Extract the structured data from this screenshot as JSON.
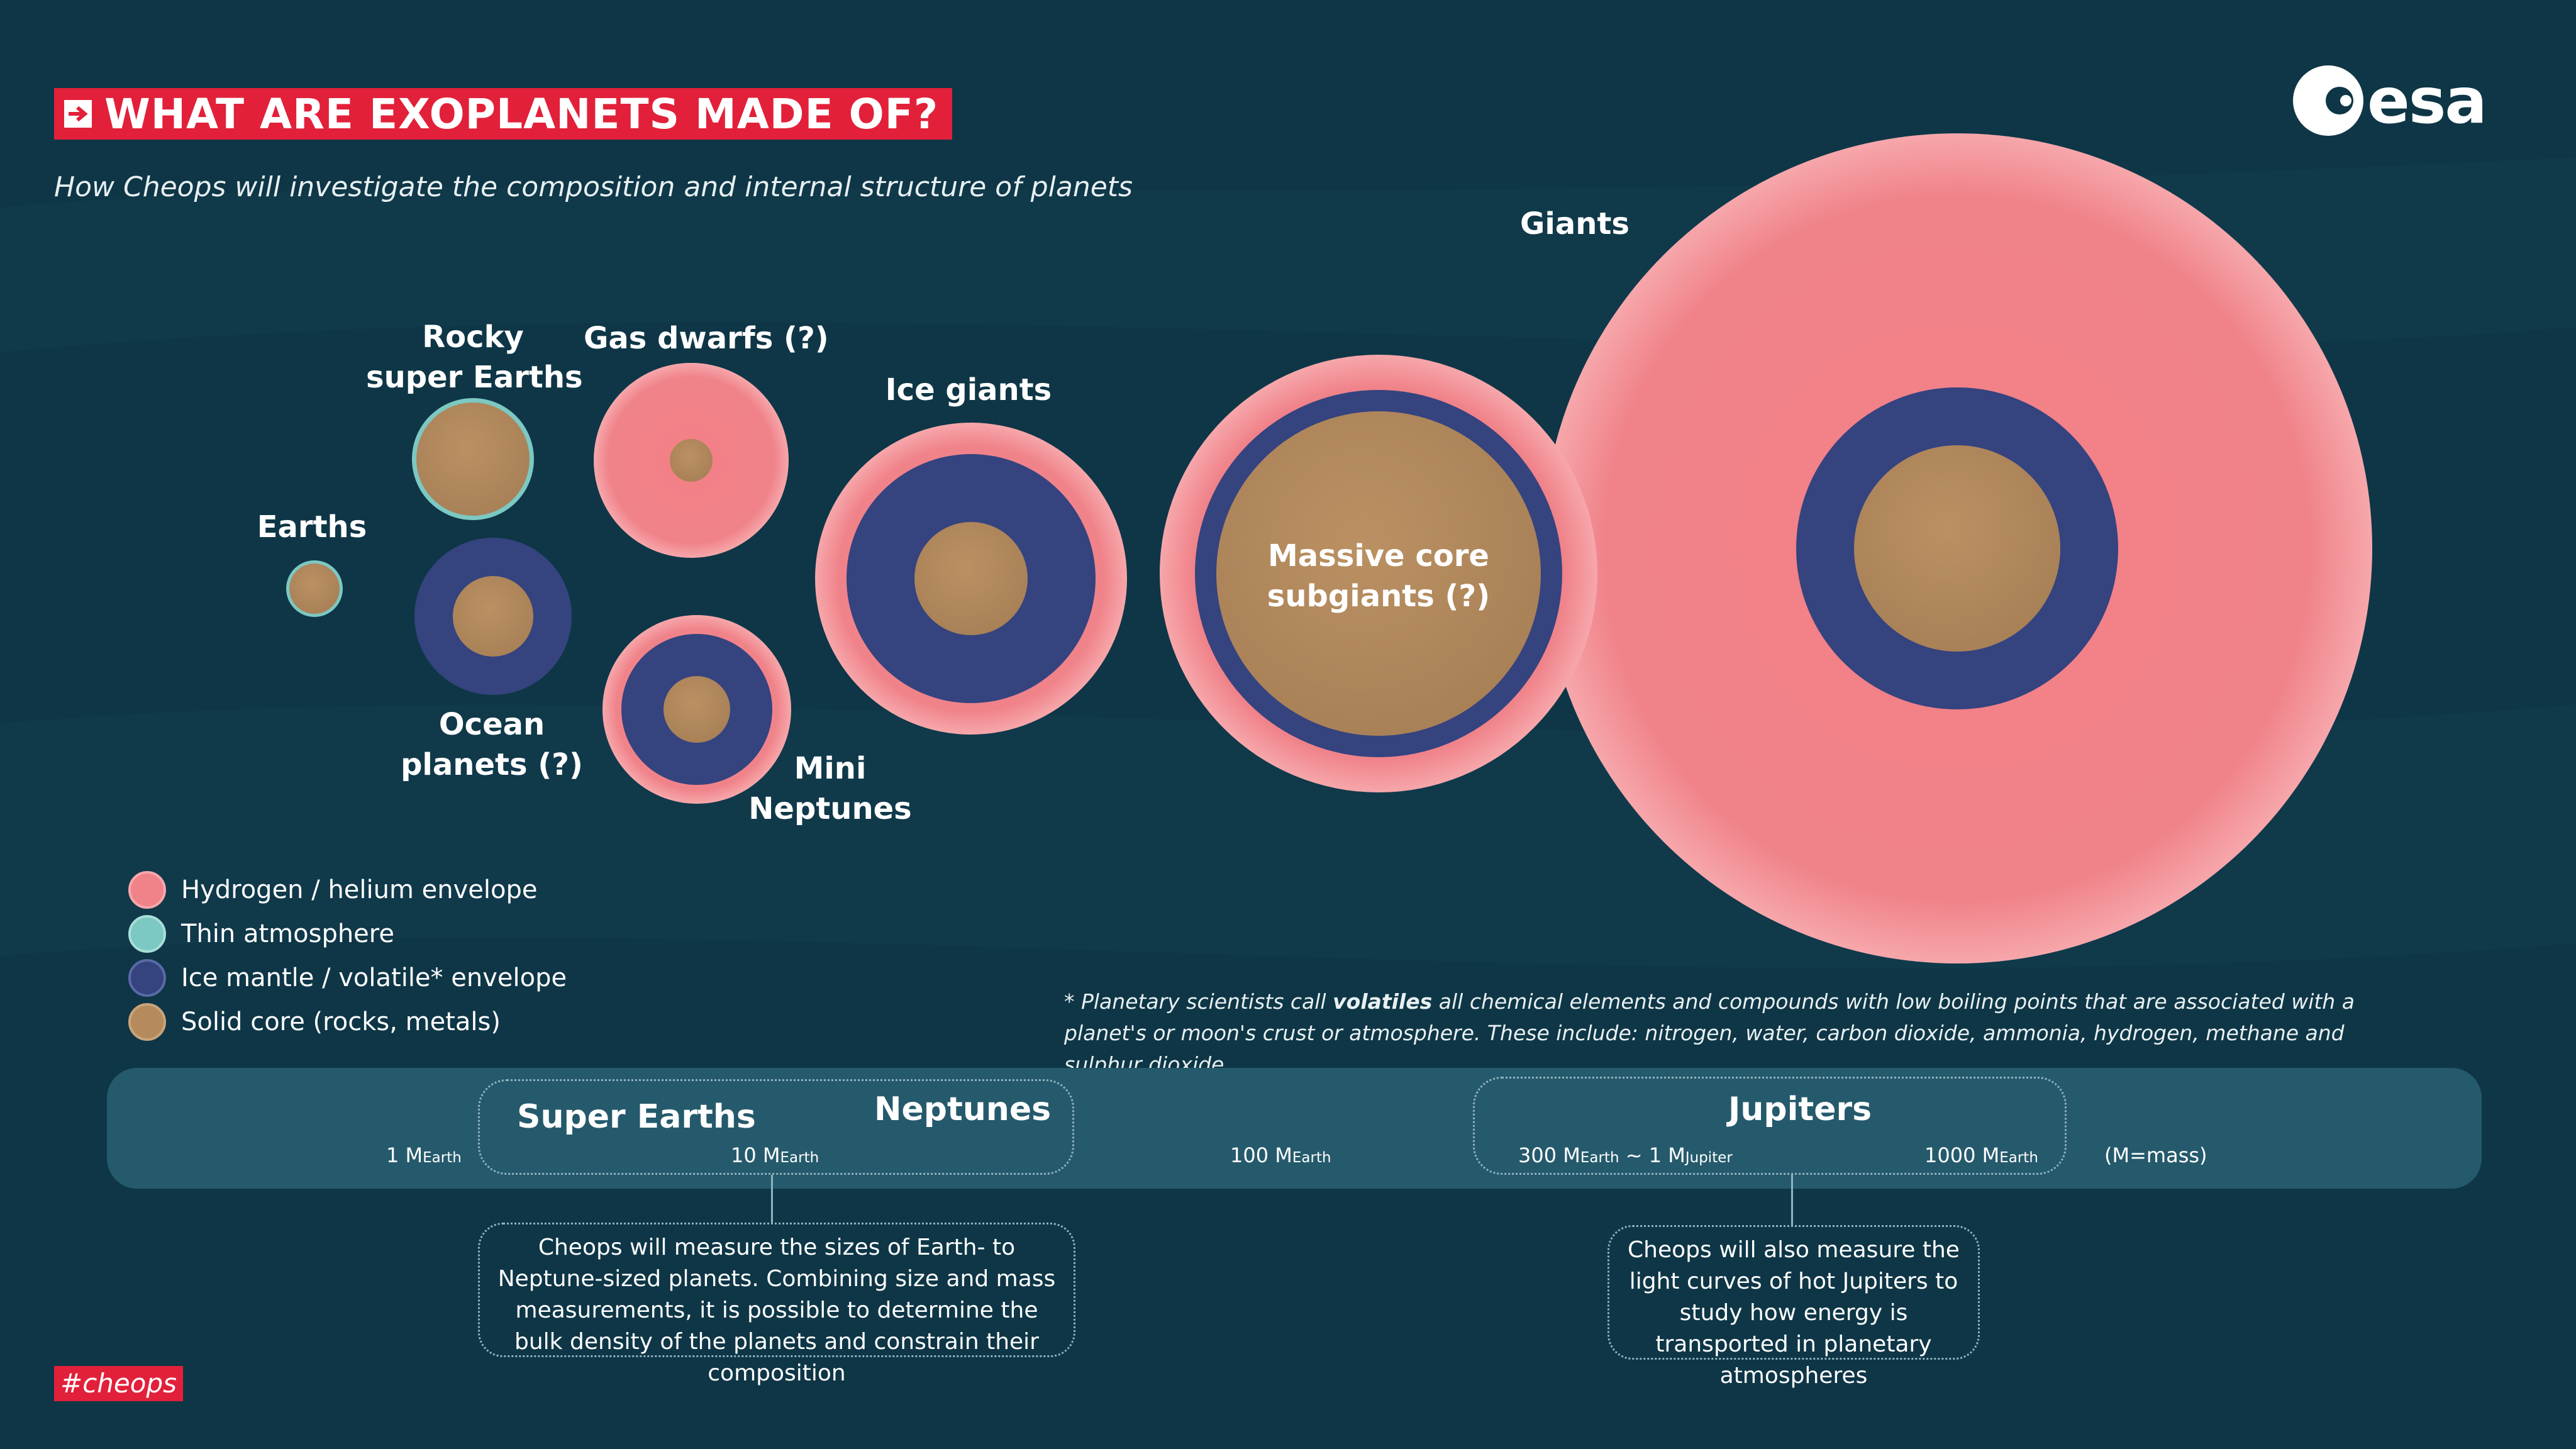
{
  "header": {
    "title": "WHAT ARE EXOPLANETS MADE OF?",
    "subtitle": "How Cheops will investigate the composition and internal structure of planets"
  },
  "logo": {
    "text": "esa"
  },
  "planets": {
    "earths": "Earths",
    "rocky_line1": "Rocky",
    "rocky_line2": "super Earths",
    "ocean_line1": "Ocean",
    "ocean_line2": "planets (?)",
    "gas_dwarfs": "Gas dwarfs (?)",
    "mini_line1": "Mini",
    "mini_line2": "Neptunes",
    "ice_giants": "Ice giants",
    "massive_line1": "Massive core",
    "massive_line2": "subgiants (?)",
    "giants": "Giants"
  },
  "legend": {
    "items": [
      {
        "label": "Hydrogen / helium envelope",
        "color": "#f0838a"
      },
      {
        "label": "Thin atmosphere",
        "color": "#7cc8c2"
      },
      {
        "label": "Ice mantle / volatile* envelope",
        "color": "#35437f"
      },
      {
        "label": "Solid core (rocks, metals)",
        "color": "#b58b5e"
      }
    ]
  },
  "footnote": {
    "pre": "* Planetary scientists call ",
    "bold": "volatiles",
    "post": " all chemical elements and compounds with low boiling points that are associated with a planet's or moon's crust or atmosphere. These include: nitrogen, water, carbon dioxide, ammonia, hydrogen, methane and sulphur dioxide."
  },
  "scale": {
    "super_earths": "Super Earths",
    "neptunes": "Neptunes",
    "jupiters": "Jupiters",
    "m1": "1 M",
    "m1_sub": "Earth",
    "m10": "10 M",
    "m10_sub": "Earth",
    "m100": "100 M",
    "m100_sub": "Earth",
    "m300": "300 M",
    "m300_sub": "Earth",
    "m300_sep": " ~ 1 M",
    "m300_sub2": "Jupiter",
    "m1000": "1000 M",
    "m1000_sub": "Earth",
    "mass_note": "(M=mass)"
  },
  "callouts": {
    "left": "Cheops will measure the sizes of Earth- to Neptune-sized planets. Combining size and mass measurements, it is possible to determine the bulk density of the planets and constrain their composition",
    "right": "Cheops will also measure the light curves of hot Jupiters to study how energy is transported in planetary atmospheres"
  },
  "hashtag": "#cheops",
  "colors": {
    "background": "#0e3646",
    "accent_red": "#e2203a",
    "envelope": "#f0838a",
    "atmosphere": "#7cc8c2",
    "mantle": "#35437f",
    "core": "#b58b5e",
    "scale_bar": "#255a6c"
  }
}
